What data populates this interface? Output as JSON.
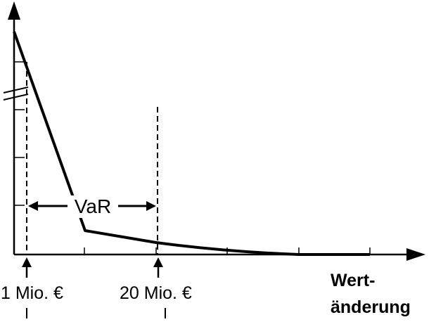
{
  "diagram": {
    "curve_label": "VaR",
    "x_axis_title": [
      "Wert-",
      "änderung"
    ],
    "markers": [
      {
        "label": "1 Mio. €"
      },
      {
        "label": "20 Mio. €"
      }
    ],
    "colors": {
      "ink": "#000000",
      "background": "#ffffff"
    }
  }
}
